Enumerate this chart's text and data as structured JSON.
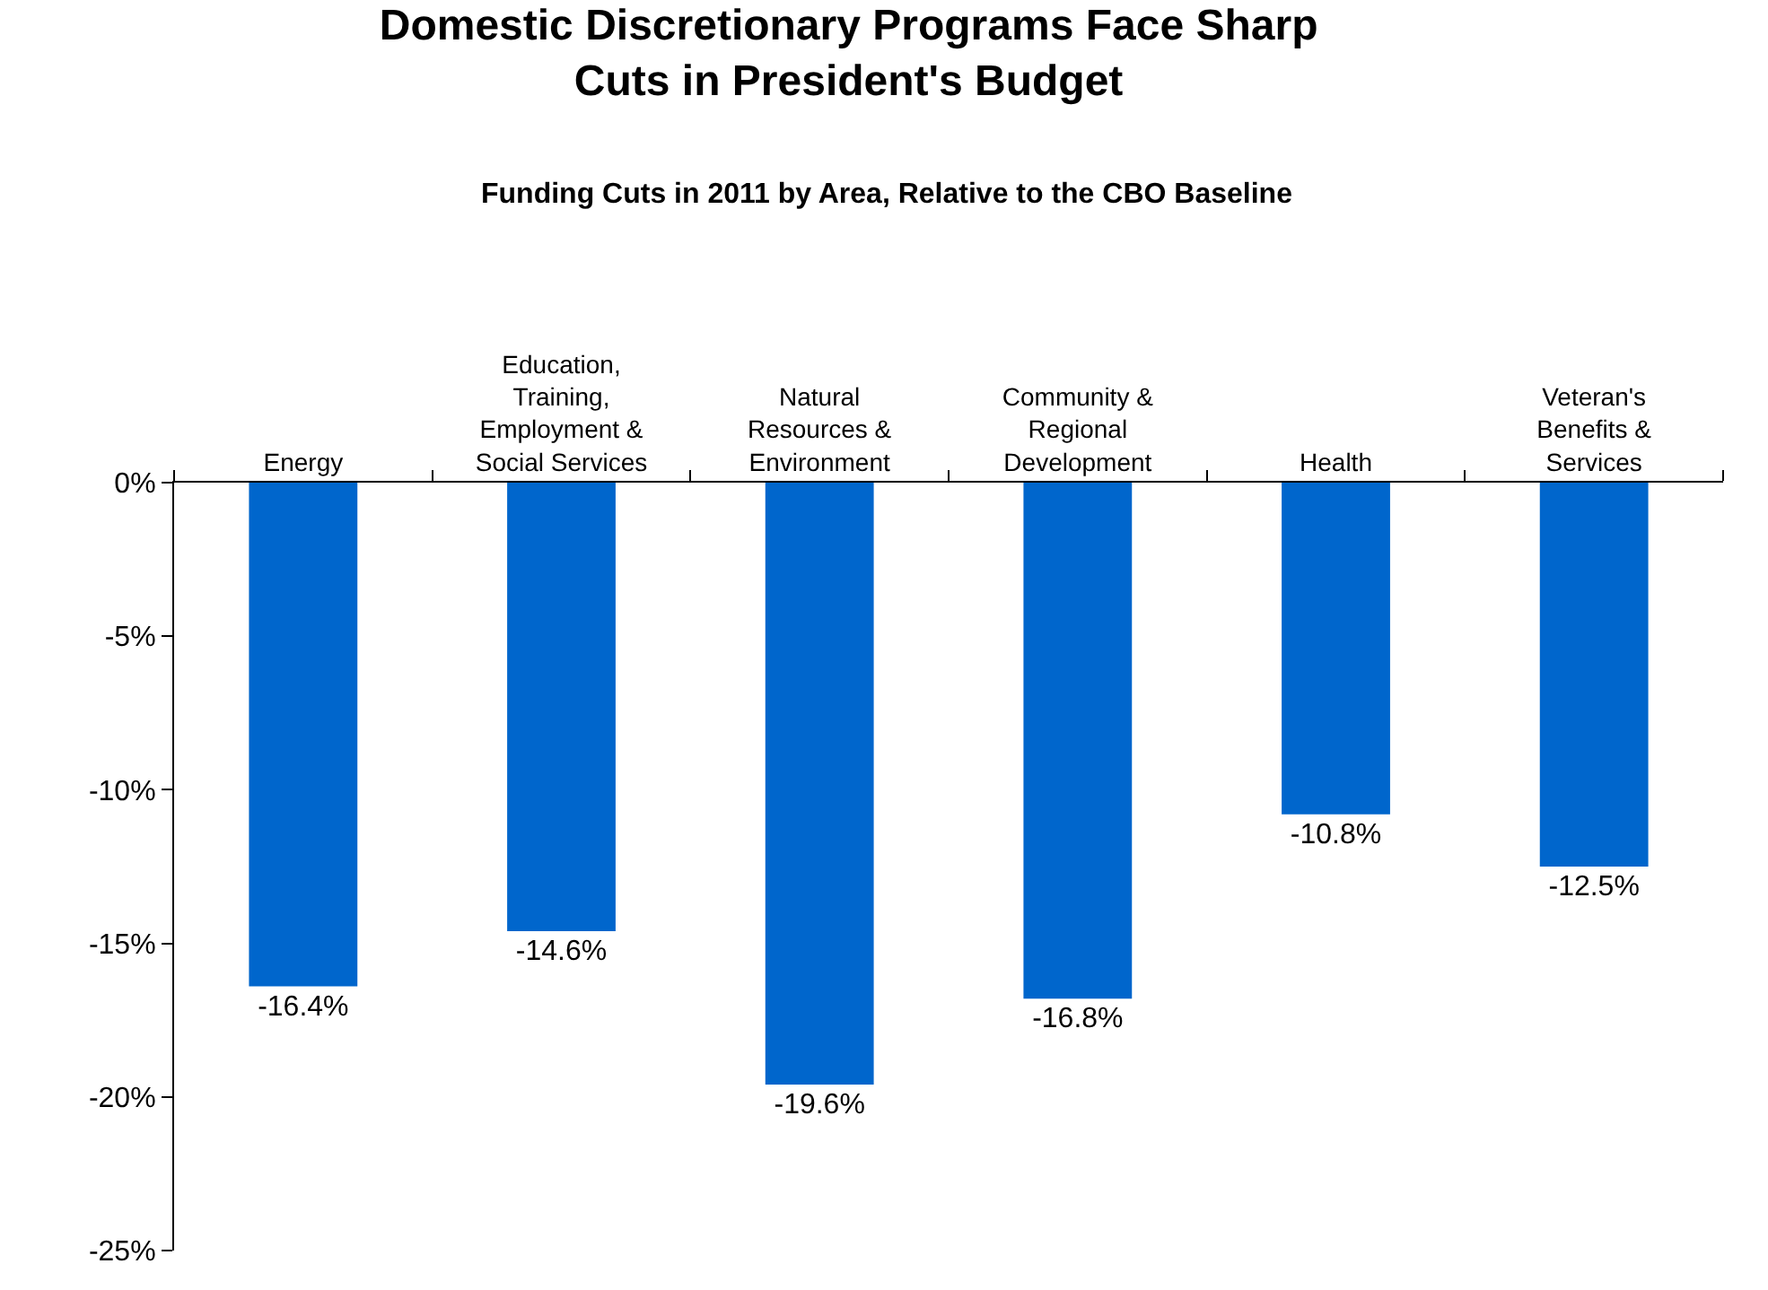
{
  "chart_data": {
    "type": "bar",
    "title": "Domestic Discretionary Programs Face Sharp\nCuts in President's Budget",
    "subtitle": "Funding Cuts in 2011 by Area, Relative to the CBO Baseline",
    "categories": [
      "Energy",
      "Education,\nTraining,\nEmployment &\nSocial Services",
      "Natural\nResources &\nEnvironment",
      "Community &\nRegional\nDevelopment",
      "Health",
      "Veteran's\nBenefits &\nServices"
    ],
    "values": [
      -16.4,
      -14.6,
      -19.6,
      -16.8,
      -10.8,
      -12.5
    ],
    "value_labels": [
      "-16.4%",
      "-14.6%",
      "-19.6%",
      "-16.8%",
      "-10.8%",
      "-12.5%"
    ],
    "color": "#0066cc",
    "ylim": [
      -25,
      0
    ],
    "yticks": [
      {
        "value": 0,
        "label": "0%"
      },
      {
        "value": -5,
        "label": "-5%"
      },
      {
        "value": -10,
        "label": "-10%"
      },
      {
        "value": -15,
        "label": "-15%"
      },
      {
        "value": -20,
        "label": "-20%"
      },
      {
        "value": -25,
        "label": "-25%"
      }
    ]
  }
}
